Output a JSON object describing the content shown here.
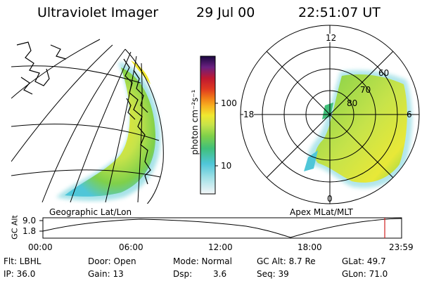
{
  "header": {
    "title": "Ultraviolet Imager",
    "date": "29 Jul 00",
    "time": "22:51:07 UT"
  },
  "geo_panel": {
    "label": "Geographic Lat/Lon"
  },
  "polar_panel": {
    "label": "Apex MLat/MLT",
    "mlt_labels": [
      "12",
      "18",
      "6",
      "0"
    ],
    "lat_labels": [
      "60",
      "70",
      "80"
    ]
  },
  "colorbar": {
    "unit_label": "photon cm⁻²s⁻¹",
    "ticks": [
      "100",
      "10"
    ],
    "scale": "log",
    "colors": [
      "#e6ecf0",
      "#9fe0e6",
      "#4fc6d8",
      "#40c07a",
      "#7fd04a",
      "#c6e34a",
      "#f0e830",
      "#f8b020",
      "#f07818",
      "#e03a20",
      "#c01830",
      "#9a2060",
      "#6a2080",
      "#2a1060"
    ]
  },
  "altitude_plot": {
    "axis_label": "GC Alt",
    "ytick_top": "9.0",
    "ytick_bottom": "1.8",
    "xticks": [
      "00:00",
      "06:00",
      "12:00",
      "18:00",
      "23:59"
    ],
    "current_time_fraction": 0.953,
    "marker_color": "#d02020"
  },
  "info": {
    "filter": "Flt: LBHL",
    "ip": "IP: 36.0",
    "door": "Door: Open",
    "gain": "Gain: 13",
    "mode": "Mode: Normal",
    "dsp_label": "Dsp:",
    "dsp_value": "3.6",
    "gc_alt": "GC Alt: 8.7 Re",
    "seq": "Seq: 39",
    "glat": "GLat: 49.7",
    "glon": "GLon: 71.0"
  }
}
